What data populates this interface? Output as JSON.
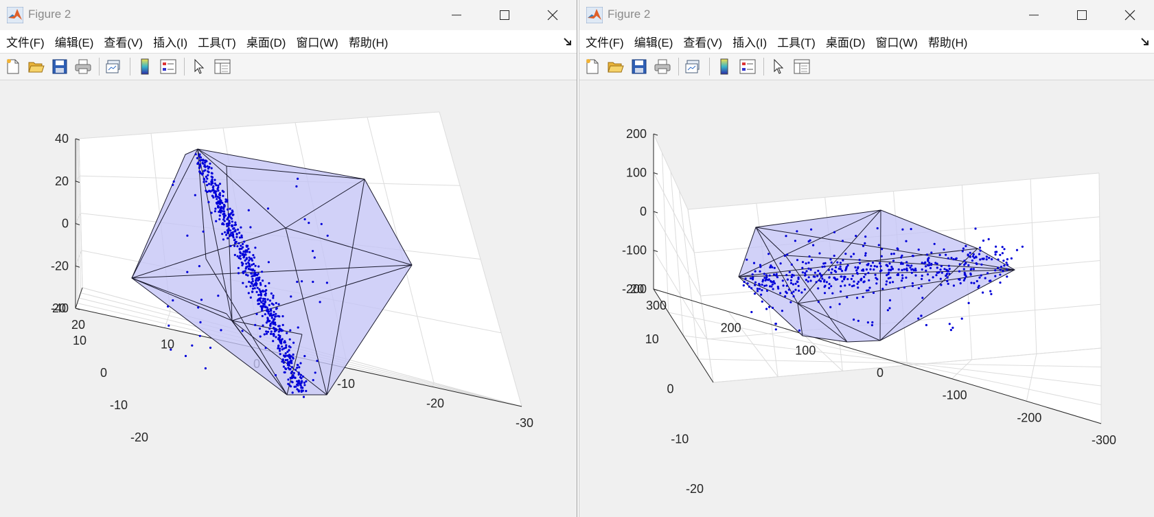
{
  "colors": {
    "point": "#0000d8",
    "hull_fill": "#c4c4f6",
    "hull_edge": "#1a1a2e",
    "grid": "#dcdcdc",
    "title_text": "#8a8a8a"
  },
  "icons": [
    "matlab-logo-icon",
    "minimize-icon",
    "maximize-icon",
    "close-icon",
    "dock-arrow-icon",
    "new-figure-icon",
    "open-file-icon",
    "save-icon",
    "print-icon",
    "link-plot-icon",
    "colorbar-icon",
    "legend-icon",
    "pointer-icon",
    "property-inspector-icon"
  ],
  "window1": {
    "title": "Figure 2",
    "menu": [
      "文件(F)",
      "编辑(E)",
      "查看(V)",
      "插入(I)",
      "工具(T)",
      "桌面(D)",
      "窗口(W)",
      "帮助(H)"
    ]
  },
  "window2": {
    "title": "Figure 2",
    "menu": [
      "文件(F)",
      "编辑(E)",
      "查看(V)",
      "插入(I)",
      "工具(T)",
      "桌面(D)",
      "窗口(W)",
      "帮助(H)"
    ]
  },
  "chart_data": [
    {
      "type": "scatter",
      "title": "",
      "projection": "3d",
      "grid": true,
      "overlay": "convex hull",
      "z_ticks": [
        "40",
        "20",
        "0",
        "-20",
        "-40"
      ],
      "y_ticks": [
        "-20",
        "-10",
        "0",
        "10",
        "20"
      ],
      "x_ticks": [
        "20",
        "10",
        "0",
        "-10",
        "-20",
        "-30"
      ]
    },
    {
      "type": "scatter",
      "title": "",
      "projection": "3d",
      "grid": true,
      "overlay": "convex hull",
      "z_ticks": [
        "200",
        "100",
        "0",
        "-100",
        "-200"
      ],
      "y_ticks": [
        "-20",
        "-10",
        "0",
        "10",
        "20"
      ],
      "x_ticks": [
        "300",
        "200",
        "100",
        "0",
        "-100",
        "-200",
        "-300"
      ]
    }
  ]
}
